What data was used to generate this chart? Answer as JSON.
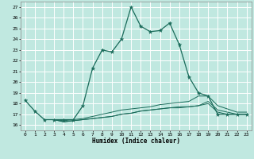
{
  "xlabel": "Humidex (Indice chaleur)",
  "xlim": [
    -0.5,
    23.5
  ],
  "ylim": [
    15.5,
    27.5
  ],
  "yticks": [
    16,
    17,
    18,
    19,
    20,
    21,
    22,
    23,
    24,
    25,
    26,
    27
  ],
  "xticks": [
    0,
    1,
    2,
    3,
    4,
    5,
    6,
    7,
    8,
    9,
    10,
    11,
    12,
    13,
    14,
    15,
    16,
    17,
    18,
    19,
    20,
    21,
    22,
    23
  ],
  "bg_color": "#c0e8e0",
  "grid_color": "#ffffff",
  "line_color": "#1a6b5a",
  "series": [
    {
      "x": [
        0,
        1,
        2,
        3,
        4,
        5,
        6,
        7,
        8,
        9,
        10,
        11,
        12,
        13,
        14,
        15,
        16,
        17,
        18,
        19,
        20,
        21,
        22,
        23
      ],
      "y": [
        18.3,
        17.3,
        16.5,
        16.5,
        16.5,
        16.5,
        17.8,
        21.3,
        23.0,
        22.8,
        24.0,
        27.0,
        25.2,
        24.7,
        24.8,
        25.5,
        23.5,
        20.5,
        19.0,
        18.7,
        17.0,
        17.0,
        17.0,
        17.0
      ]
    },
    {
      "x": [
        2,
        3,
        4,
        5,
        6,
        7,
        8,
        9,
        10,
        11,
        12,
        13,
        14,
        15,
        16,
        17,
        18,
        19,
        20,
        21,
        22,
        23
      ],
      "y": [
        16.5,
        16.5,
        16.4,
        16.5,
        16.6,
        16.8,
        17.0,
        17.2,
        17.4,
        17.5,
        17.6,
        17.7,
        17.9,
        18.0,
        18.1,
        18.2,
        18.7,
        18.7,
        17.8,
        17.5,
        17.2,
        17.2
      ]
    },
    {
      "x": [
        2,
        3,
        4,
        5,
        6,
        7,
        8,
        9,
        10,
        11,
        12,
        13,
        14,
        15,
        16,
        17,
        18,
        19,
        20,
        21,
        22,
        23
      ],
      "y": [
        16.5,
        16.5,
        16.3,
        16.4,
        16.5,
        16.6,
        16.7,
        16.8,
        17.0,
        17.1,
        17.3,
        17.4,
        17.5,
        17.6,
        17.7,
        17.7,
        17.8,
        18.2,
        17.4,
        17.2,
        17.0,
        17.0
      ]
    },
    {
      "x": [
        2,
        3,
        4,
        5,
        6,
        7,
        8,
        9,
        10,
        11,
        12,
        13,
        14,
        15,
        16,
        17,
        18,
        19,
        20,
        21,
        22,
        23
      ],
      "y": [
        16.5,
        16.5,
        16.3,
        16.4,
        16.5,
        16.6,
        16.7,
        16.8,
        17.0,
        17.1,
        17.3,
        17.4,
        17.5,
        17.6,
        17.6,
        17.7,
        17.8,
        18.0,
        17.2,
        17.0,
        17.0,
        17.0
      ]
    }
  ]
}
